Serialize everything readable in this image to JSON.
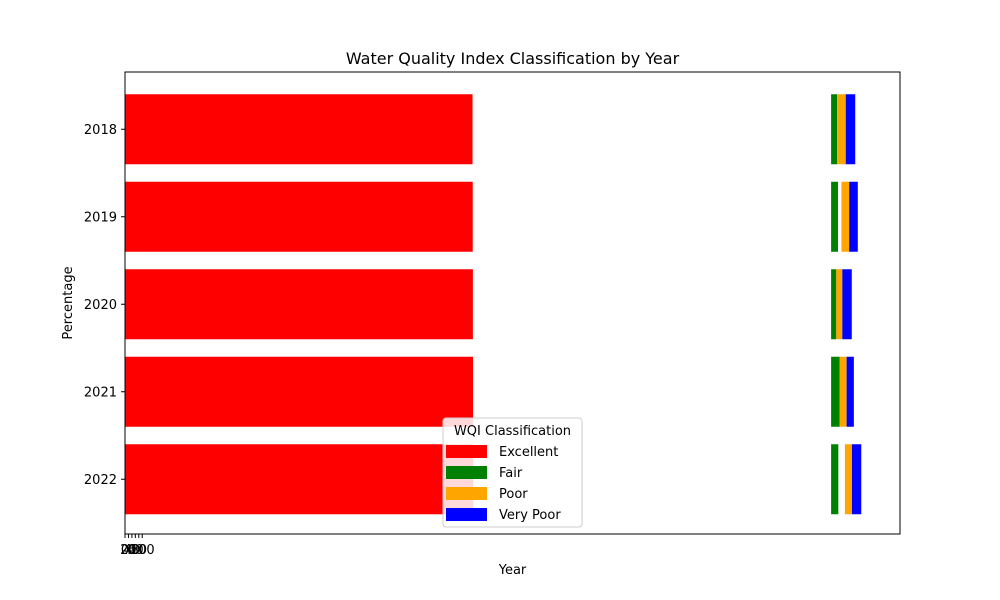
{
  "chart_data": {
    "type": "bar",
    "orientation": "horizontal-stacked",
    "title": "Water Quality Index Classification by Year",
    "xlabel": "Year",
    "ylabel": "Percentage",
    "categories": [
      "2018",
      "2019",
      "2020",
      "2021",
      "2022"
    ],
    "x_tick_labels": [
      "0",
      "20",
      "40",
      "60",
      "80",
      "100"
    ],
    "xlim": [
      0,
      4500
    ],
    "grid": false,
    "legend": {
      "title": "WQI Classification",
      "position": "lower-center"
    },
    "series": [
      {
        "name": "Excellent",
        "color": "#ff0000",
        "values": [
          2018,
          2019,
          2020,
          2021,
          2022
        ]
      },
      {
        "name": "Fair",
        "color": "#008000",
        "values": [
          35,
          40,
          30,
          50,
          42
        ]
      },
      {
        "name": "Poor",
        "color": "#ffa500",
        "values": [
          50,
          45,
          35,
          40,
          38
        ]
      },
      {
        "name": "Very Poor",
        "color": "#0000ff",
        "values": [
          55,
          50,
          55,
          42,
          55
        ]
      }
    ],
    "start_offsets": [
      {
        "series": "Excellent",
        "values": [
          0,
          0,
          0,
          0,
          0
        ]
      },
      {
        "series": "Fair",
        "values": [
          4100,
          4100,
          4100,
          4100,
          4100
        ]
      },
      {
        "series": "Poor",
        "values": [
          4135,
          4160,
          4130,
          4150,
          4180
        ]
      },
      {
        "series": "Very Poor",
        "values": [
          4185,
          4205,
          4165,
          4190,
          4220
        ]
      }
    ]
  }
}
